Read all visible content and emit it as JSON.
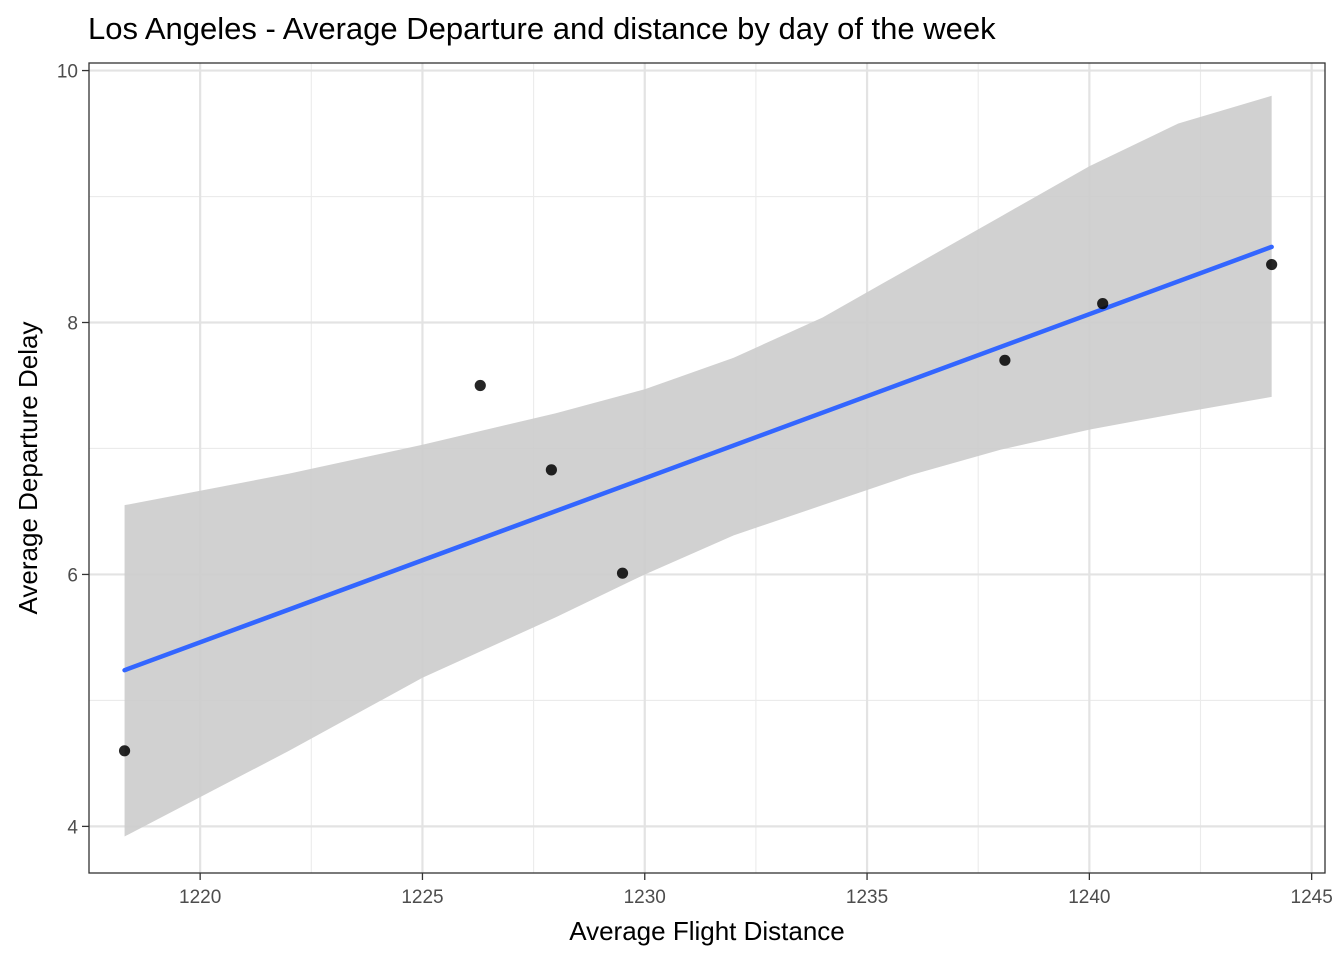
{
  "chart_data": {
    "type": "scatter",
    "title": "Los Angeles - Average Departure and distance by day of the week",
    "xlabel": "Average Flight Distance",
    "ylabel": "Average Departure Delay",
    "xlim": [
      1217.5,
      1245.3
    ],
    "ylim": [
      3.63,
      10.06
    ],
    "x_ticks": [
      1220,
      1225,
      1230,
      1235,
      1240,
      1245
    ],
    "y_ticks": [
      4,
      6,
      8,
      10
    ],
    "x_tick_labels": [
      "1220",
      "1225",
      "1230",
      "1235",
      "1240",
      "1245"
    ],
    "y_tick_labels": [
      "4",
      "6",
      "8",
      "10"
    ],
    "grid": true,
    "points": [
      {
        "x": 1218.3,
        "y": 4.6
      },
      {
        "x": 1226.3,
        "y": 7.5
      },
      {
        "x": 1227.9,
        "y": 6.83
      },
      {
        "x": 1229.5,
        "y": 6.01
      },
      {
        "x": 1238.1,
        "y": 7.7
      },
      {
        "x": 1240.3,
        "y": 8.15
      },
      {
        "x": 1244.1,
        "y": 8.46
      }
    ],
    "trend_line": {
      "method": "linear regression",
      "color": "#3366ff",
      "x": [
        1218.3,
        1244.1
      ],
      "y": [
        5.24,
        8.6
      ]
    },
    "confidence_band": {
      "color": "#cccccc",
      "x": [
        1218.3,
        1222,
        1225,
        1228,
        1230,
        1232,
        1234,
        1236,
        1238,
        1240,
        1242,
        1244.1
      ],
      "upper": [
        6.55,
        6.8,
        7.03,
        7.28,
        7.47,
        7.72,
        8.04,
        8.44,
        8.84,
        9.24,
        9.58,
        9.8
      ],
      "lower": [
        3.92,
        4.6,
        5.18,
        5.66,
        6.0,
        6.31,
        6.55,
        6.79,
        6.99,
        7.15,
        7.28,
        7.41
      ]
    }
  }
}
